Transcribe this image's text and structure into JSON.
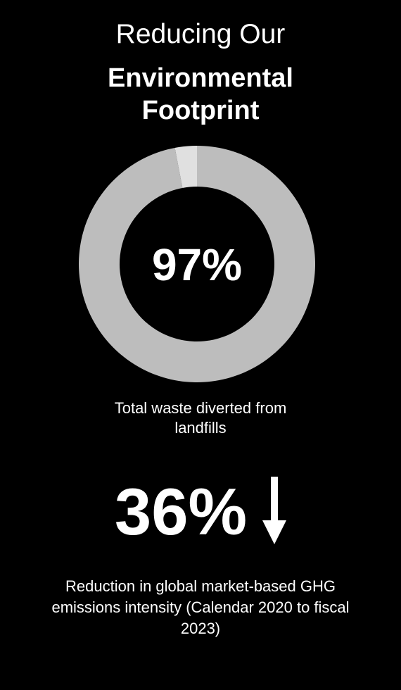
{
  "title": {
    "line1": "Reducing Our",
    "line2": "Environmental Footprint"
  },
  "chart_data": {
    "type": "pie",
    "style": "donut",
    "center_label": "97%",
    "slices": [
      {
        "value": 97,
        "color": "#bdbdbd"
      },
      {
        "value": 3,
        "color": "#e0e0e0"
      }
    ],
    "caption": "Total waste diverted from landfills"
  },
  "stat": {
    "value": "36%",
    "icon": "down-arrow-icon",
    "caption": "Reduction in global market-based GHG emissions intensity (Calendar 2020 to fiscal 2023)"
  },
  "colors": {
    "background": "#000000",
    "text": "#ffffff",
    "slice_main": "#bdbdbd",
    "slice_remainder": "#e0e0e0"
  }
}
